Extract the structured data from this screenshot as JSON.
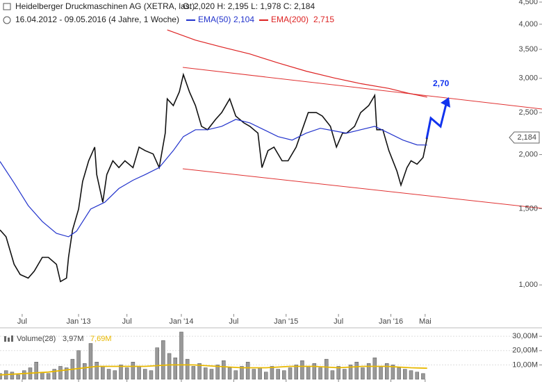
{
  "chart_data": [
    {
      "type": "line",
      "title": "Heidelberger Druckmaschinen AG (XETRA, last)",
      "ohlc": "O: 2,020  H: 2,195  L: 1,978  C: 2,184",
      "subtitle": "16.04.2012 - 09.05.2016 (4 Jahre, 1 Woche)",
      "annotation": "2,70",
      "log_scale": true,
      "xlim": [
        0,
        269
      ],
      "ylim": [
        857,
        4550
      ],
      "xticks": [
        {
          "value": 11,
          "label": "Jul"
        },
        {
          "value": 39,
          "label": "Jan '13"
        },
        {
          "value": 63,
          "label": "Jul"
        },
        {
          "value": 90,
          "label": "Jan '14"
        },
        {
          "value": 116,
          "label": "Jul"
        },
        {
          "value": 142,
          "label": "Jan '15"
        },
        {
          "value": 168,
          "label": "Jul"
        },
        {
          "value": 194,
          "label": "Jan '16"
        },
        {
          "value": 211,
          "label": "Mai"
        }
      ],
      "yticks": [
        {
          "value": 1000,
          "label": "1,000"
        },
        {
          "value": 1500,
          "label": "1,500"
        },
        {
          "value": 2000,
          "label": "2,000"
        },
        {
          "value": 2500,
          "label": "2,500"
        },
        {
          "value": 3000,
          "label": "3,000"
        },
        {
          "value": 3500,
          "label": "3,500"
        },
        {
          "value": 4000,
          "label": "4,000"
        },
        {
          "value": 4500,
          "label": "4,500"
        }
      ],
      "series": [
        {
          "color": "#111111",
          "last_label": "2,184",
          "x": [
            0,
            3,
            7,
            10,
            14,
            17,
            21,
            24,
            28,
            30,
            33,
            34,
            36,
            39,
            41,
            44,
            47,
            48,
            51,
            53,
            56,
            59,
            62,
            66,
            69,
            72,
            76,
            79,
            82,
            83,
            86,
            89,
            91,
            94,
            97,
            100,
            103,
            107,
            110,
            114,
            117,
            121,
            124,
            128,
            130,
            133,
            136,
            140,
            143,
            147,
            150,
            153,
            157,
            160,
            164,
            167,
            170,
            172,
            176,
            179,
            183,
            186,
            187,
            190,
            193,
            197,
            199,
            202,
            204,
            207,
            210,
            212
          ],
          "values": [
            1340,
            1292,
            1116,
            1057,
            1037,
            1076,
            1158,
            1158,
            1116,
            1018,
            1037,
            1158,
            1340,
            1497,
            1733,
            1935,
            2081,
            1798,
            1552,
            1798,
            1935,
            1866,
            1935,
            1866,
            2081,
            2043,
            2006,
            1866,
            2241,
            2690,
            2595,
            2792,
            3060,
            2792,
            2595,
            2324,
            2282,
            2411,
            2500,
            2690,
            2455,
            2367,
            2324,
            2241,
            1866,
            2043,
            2081,
            1935,
            1935,
            2081,
            2282,
            2500,
            2500,
            2455,
            2324,
            2081,
            2241,
            2241,
            2324,
            2500,
            2595,
            2740,
            2282,
            2282,
            2043,
            1832,
            1700,
            1866,
            1935,
            1900,
            1970,
            2184
          ]
        },
        {
          "name": "EMA(50)",
          "color": "#2233cc",
          "last_label": "2,104",
          "x": [
            0,
            7,
            14,
            21,
            28,
            34,
            38,
            45,
            52,
            59,
            66,
            72,
            79,
            86,
            91,
            97,
            103,
            110,
            117,
            124,
            131,
            138,
            145,
            152,
            159,
            166,
            172,
            179,
            186,
            193,
            200,
            207,
            212
          ],
          "values": [
            1928,
            1720,
            1525,
            1401,
            1316,
            1292,
            1331,
            1497,
            1552,
            1670,
            1745,
            1798,
            1866,
            2043,
            2200,
            2282,
            2282,
            2324,
            2411,
            2367,
            2282,
            2200,
            2160,
            2241,
            2300,
            2268,
            2241,
            2282,
            2324,
            2241,
            2160,
            2106,
            2104
          ]
        },
        {
          "name": "EMA(200)",
          "color": "#dd2222",
          "last_label": "2,715",
          "x": [
            83,
            97,
            110,
            124,
            138,
            152,
            166,
            179,
            193,
            203,
            212
          ],
          "values": [
            3880,
            3676,
            3544,
            3415,
            3256,
            3116,
            3005,
            2917,
            2843,
            2770,
            2715
          ]
        }
      ]
    },
    {
      "type": "bar",
      "xlim": [
        0,
        269
      ],
      "ylim": [
        0,
        33
      ],
      "yticks": [
        {
          "value": 10,
          "label": "10,00M"
        },
        {
          "value": 20,
          "label": "20,00M"
        },
        {
          "value": 30,
          "label": "30,00M"
        }
      ],
      "grid": true,
      "series": [
        {
          "name": "Volume(28)",
          "color": "#999999",
          "last_label": "3,97M",
          "x": [
            0,
            3,
            6,
            9,
            12,
            15,
            18,
            21,
            24,
            27,
            30,
            33,
            36,
            39,
            42,
            45,
            48,
            51,
            54,
            57,
            60,
            63,
            66,
            69,
            72,
            75,
            78,
            81,
            84,
            87,
            90,
            93,
            96,
            99,
            102,
            105,
            108,
            111,
            114,
            117,
            120,
            123,
            126,
            129,
            132,
            135,
            138,
            141,
            144,
            147,
            150,
            153,
            156,
            159,
            162,
            165,
            168,
            171,
            174,
            177,
            180,
            183,
            186,
            189,
            192,
            195,
            198,
            201,
            204,
            207,
            210
          ],
          "values": [
            4,
            6,
            5,
            3,
            6,
            8,
            12,
            5,
            4,
            7,
            9,
            8,
            14,
            20,
            11,
            25,
            12,
            9,
            7,
            6,
            10,
            8,
            12,
            9,
            7,
            6,
            22,
            27,
            18,
            15,
            33,
            14,
            9,
            11,
            8,
            7,
            10,
            13,
            8,
            6,
            9,
            12,
            7,
            8,
            5,
            9,
            7,
            6,
            8,
            10,
            13,
            9,
            11,
            8,
            14,
            6,
            9,
            7,
            10,
            12,
            8,
            11,
            15,
            9,
            11,
            10,
            8,
            7,
            6,
            5,
            3.97
          ]
        },
        {
          "type": "line",
          "color": "#e8b800",
          "last_label": "7,69M",
          "x": [
            0,
            12,
            24,
            36,
            48,
            60,
            72,
            84,
            96,
            108,
            120,
            132,
            144,
            156,
            168,
            180,
            192,
            204,
            212
          ],
          "values": [
            3,
            4,
            5,
            7,
            9,
            9,
            9,
            10,
            10,
            9,
            8,
            8,
            9,
            9,
            8,
            9,
            9,
            8,
            7.69
          ]
        }
      ]
    }
  ]
}
